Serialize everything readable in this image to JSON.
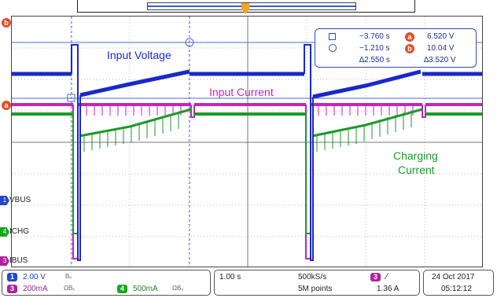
{
  "labels": {
    "input_voltage": "Input Voltage",
    "input_current": "Input Current",
    "charging_current_line1": "Charging",
    "charging_current_line2": "Current"
  },
  "cursors": {
    "a_time": "−3.760 s",
    "b_time": "−1.210 s",
    "delta_time": "∆2.550 s",
    "a_value": "6.520 V",
    "b_value": "10.04 V",
    "delta_value": "∆3.520 V",
    "a_badge": "a",
    "b_badge": "b"
  },
  "channels": {
    "vbus": "VBUS",
    "ichg": "ICHG",
    "ibus": "IBUS"
  },
  "status": {
    "ch1_num": "1",
    "ch1_scale": "2.00 V",
    "ch1_bw": "Bᵥ",
    "ch3_num": "3",
    "ch3_scale": "200mA",
    "ch3_bw": "ΩBᵥ",
    "ch4_num": "4",
    "ch4_scale": "500mA",
    "ch4_bw": "ΩBᵥ",
    "timebase": "1.00 s",
    "sample_rate": "500kS/s",
    "record_length": "5M points",
    "trigger_channel": "3",
    "trigger_slope": "∕",
    "trigger_level": "1.36 A",
    "date": "24 Oct  2017",
    "time": "05:12:12"
  },
  "colors": {
    "ch1": "#1a28c8",
    "ch3": "#c026c0",
    "ch4": "#1a9a2a",
    "cursor": "#2f4fb0"
  }
}
